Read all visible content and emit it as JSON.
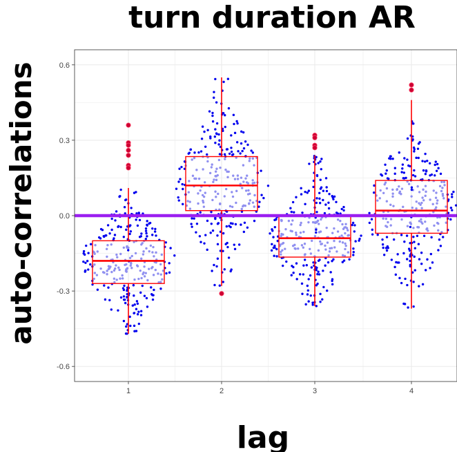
{
  "chart_data": {
    "type": "boxplot",
    "title": "turn duration AR",
    "xlabel": "lag",
    "ylabel": "auto-correlations",
    "categories": [
      "1",
      "2",
      "3",
      "4"
    ],
    "yticks": [
      "0.6",
      "0.3",
      "0.0",
      "-0.3",
      "-0.6"
    ],
    "ytick_values": [
      0.6,
      0.3,
      0.0,
      -0.3,
      -0.6
    ],
    "ylim": [
      -0.66,
      0.66
    ],
    "grid": true,
    "reference_line": 0.0,
    "boxes": [
      {
        "category": "1",
        "q1": -0.27,
        "median": -0.18,
        "q3": -0.1,
        "whisker_low": -0.47,
        "whisker_high": 0.11,
        "outliers": [
          0.36,
          0.29,
          0.28,
          0.26,
          0.24,
          0.2,
          0.19
        ]
      },
      {
        "category": "2",
        "q1": 0.02,
        "median": 0.12,
        "q3": 0.235,
        "whisker_low": -0.28,
        "whisker_high": 0.55,
        "outliers": [
          -0.31
        ]
      },
      {
        "category": "3",
        "q1": -0.165,
        "median": -0.09,
        "q3": 0.0,
        "whisker_low": -0.36,
        "whisker_high": 0.24,
        "outliers": [
          0.32,
          0.31,
          0.28,
          0.27
        ]
      },
      {
        "category": "4",
        "q1": -0.07,
        "median": 0.02,
        "q3": 0.14,
        "whisker_low": -0.37,
        "whisker_high": 0.46,
        "outliers": [
          0.52,
          0.5
        ]
      }
    ],
    "colors": {
      "points": "#0000ee",
      "points_inside": "#9090f0",
      "box": "#ff0000",
      "outlier": "#cc0033",
      "reference_line": "#9b1ff0",
      "grid": "#ebebeb",
      "panel_border": "#333333"
    }
  }
}
